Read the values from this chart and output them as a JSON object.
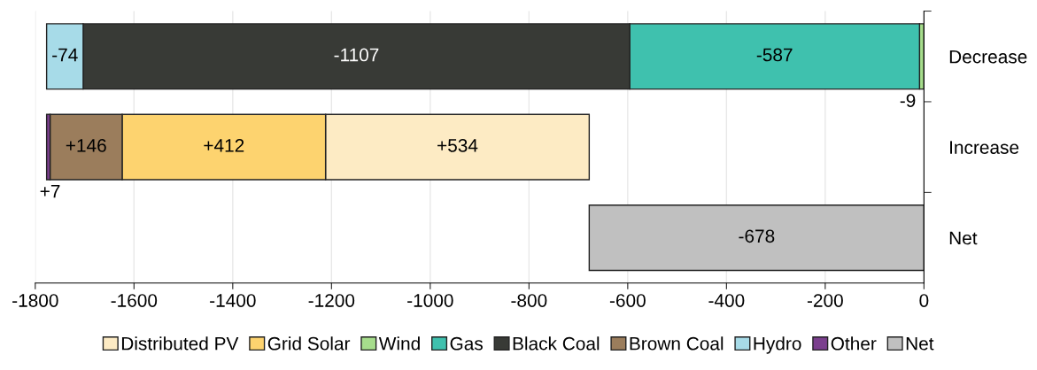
{
  "chart_data": {
    "type": "bar",
    "orientation": "horizontal",
    "categories": [
      "Decrease",
      "Increase",
      "Net"
    ],
    "series": [
      {
        "name": "Distributed PV",
        "color": "#fdebc4",
        "values": [
          null,
          534,
          null
        ],
        "base": [
          null,
          -1212,
          null
        ],
        "value_labels": [
          null,
          "+534",
          null
        ]
      },
      {
        "name": "Grid Solar",
        "color": "#fdd36f",
        "values": [
          null,
          412,
          null
        ],
        "base": [
          null,
          -1624,
          null
        ],
        "value_labels": [
          null,
          "+412",
          null
        ]
      },
      {
        "name": "Wind",
        "color": "#a6dd8c",
        "values": [
          -9,
          null,
          null
        ],
        "base": [
          0,
          null,
          null
        ],
        "value_labels": [
          "-9",
          null,
          null
        ]
      },
      {
        "name": "Gas",
        "color": "#3fc1ae",
        "values": [
          -587,
          null,
          null
        ],
        "base": [
          -9,
          null,
          null
        ],
        "value_labels": [
          "-587",
          null,
          null
        ]
      },
      {
        "name": "Black Coal",
        "color": "#383a36",
        "values": [
          -1107,
          null,
          null
        ],
        "base": [
          -596,
          null,
          null
        ],
        "value_labels": [
          "-1107",
          null,
          null
        ]
      },
      {
        "name": "Brown Coal",
        "color": "#9b7d5c",
        "values": [
          null,
          146,
          null
        ],
        "base": [
          null,
          -1770,
          null
        ],
        "value_labels": [
          null,
          "+146",
          null
        ]
      },
      {
        "name": "Hydro",
        "color": "#a7dbe8",
        "values": [
          -74,
          null,
          null
        ],
        "base": [
          -1703,
          null,
          null
        ],
        "value_labels": [
          "-74",
          null,
          null
        ]
      },
      {
        "name": "Other",
        "color": "#7b3f8e",
        "values": [
          null,
          7,
          null
        ],
        "base": [
          null,
          -1777,
          null
        ],
        "value_labels": [
          null,
          "+7",
          null
        ]
      },
      {
        "name": "Net",
        "color": "#c0c0c0",
        "values": [
          null,
          null,
          -678
        ],
        "base": [
          null,
          null,
          0
        ],
        "value_labels": [
          null,
          null,
          "-678"
        ]
      }
    ],
    "xlim": [
      -1800,
      0
    ],
    "xticks": [
      -1800,
      -1600,
      -1400,
      -1200,
      -1000,
      -800,
      -600,
      -400,
      -200,
      0
    ],
    "grid": "x",
    "legend": "bottom"
  }
}
